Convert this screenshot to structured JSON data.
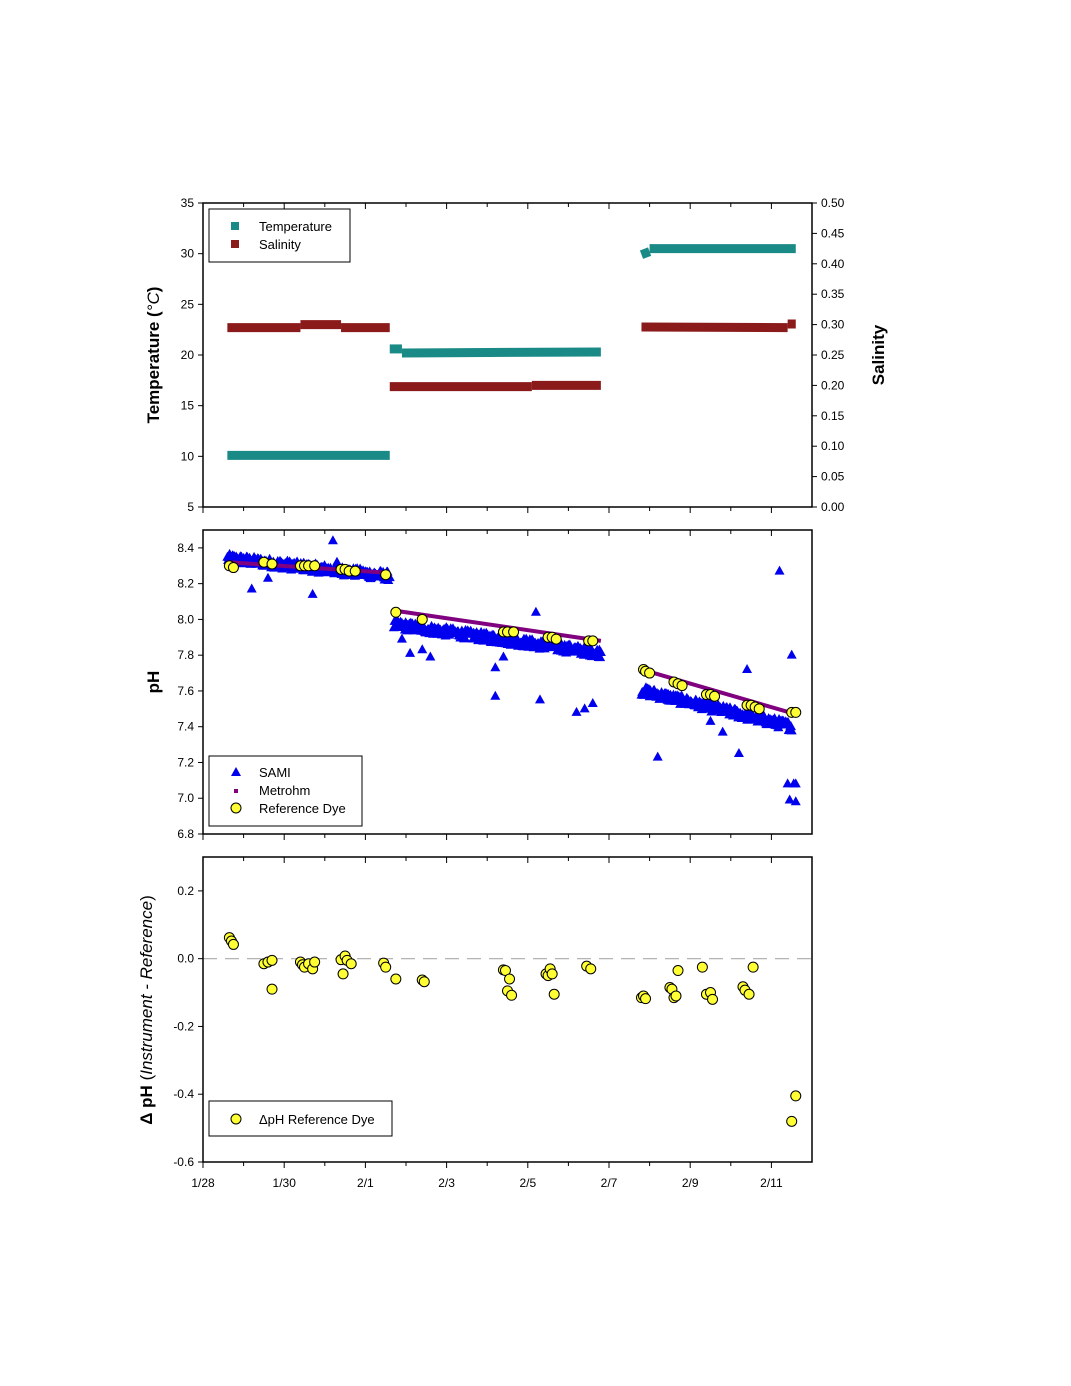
{
  "chart_data": [
    {
      "type": "scatter",
      "panel": "top",
      "y_label": "Temperature (°C)",
      "y_label_parts": [
        "Temperature (",
        "°C",
        ")"
      ],
      "y_ticks": [
        "5",
        "10",
        "15",
        "20",
        "25",
        "30",
        "35"
      ],
      "ylim": [
        5,
        35
      ],
      "y2_label": "Salinity",
      "y2_ticks": [
        "0.00",
        "0.05",
        "0.10",
        "0.15",
        "0.20",
        "0.25",
        "0.30",
        "0.35",
        "0.40",
        "0.45",
        "0.50"
      ],
      "y2lim": [
        0,
        0.5
      ],
      "xlim": [
        0,
        15
      ],
      "legend": [
        "Temperature",
        "Salinity"
      ],
      "legend_position": "top-left",
      "colors": {
        "temperature": "#1a8a87",
        "salinity": "#8b1a1a"
      },
      "series": [
        {
          "name": "Temperature",
          "axis": "left",
          "segments": [
            {
              "x": [
                0.6,
                4.6
              ],
              "y": [
                10.1,
                10.1
              ]
            },
            {
              "x": [
                4.6,
                4.9
              ],
              "y": [
                20.6,
                20.6
              ]
            },
            {
              "x": [
                4.9,
                9.8
              ],
              "y": [
                20.2,
                20.3
              ]
            },
            {
              "x": [
                10.8,
                11.0
              ],
              "y": [
                29.9,
                30.2
              ]
            },
            {
              "x": [
                11.0,
                14.6
              ],
              "y": [
                30.5,
                30.5
              ]
            }
          ]
        },
        {
          "name": "Salinity",
          "axis": "right",
          "segments": [
            {
              "x": [
                0.6,
                2.4
              ],
              "y": [
                0.295,
                0.295
              ]
            },
            {
              "x": [
                2.4,
                3.4
              ],
              "y": [
                0.3,
                0.3
              ]
            },
            {
              "x": [
                3.4,
                4.6
              ],
              "y": [
                0.295,
                0.295
              ]
            },
            {
              "x": [
                4.6,
                8.1
              ],
              "y": [
                0.198,
                0.198
              ]
            },
            {
              "x": [
                8.1,
                9.8
              ],
              "y": [
                0.2,
                0.2
              ]
            },
            {
              "x": [
                10.8,
                14.4
              ],
              "y": [
                0.296,
                0.295
              ]
            },
            {
              "x": [
                14.4,
                14.6
              ],
              "y": [
                0.301,
                0.301
              ]
            }
          ]
        }
      ]
    },
    {
      "type": "scatter",
      "panel": "middle",
      "y_label": "pH",
      "y_ticks": [
        "6.8",
        "7.0",
        "7.2",
        "7.4",
        "7.6",
        "7.8",
        "8.0",
        "8.2",
        "8.4"
      ],
      "ylim": [
        6.8,
        8.5
      ],
      "xlim": [
        0,
        15
      ],
      "legend": [
        "SAMI",
        "Metrohm",
        "Reference Dye"
      ],
      "legend_position": "bottom-left",
      "colors": {
        "sami": "#0000ee",
        "metrohm": "#800080",
        "ref": "#ffff33"
      },
      "sami_bands": [
        {
          "x0": 0.6,
          "x1": 4.6,
          "y0": 8.34,
          "y1": 8.24
        },
        {
          "x0": 4.7,
          "x1": 9.8,
          "y0": 7.97,
          "y1": 7.81
        },
        {
          "x0": 10.8,
          "x1": 14.5,
          "y0": 7.6,
          "y1": 7.4
        }
      ],
      "sami_outliers": [
        [
          1.2,
          8.17
        ],
        [
          1.6,
          8.23
        ],
        [
          2.7,
          8.14
        ],
        [
          3.2,
          8.44
        ],
        [
          3.3,
          8.32
        ],
        [
          4.9,
          7.89
        ],
        [
          5.1,
          7.81
        ],
        [
          5.4,
          7.83
        ],
        [
          5.6,
          7.79
        ],
        [
          7.2,
          7.57
        ],
        [
          7.2,
          7.73
        ],
        [
          7.4,
          7.79
        ],
        [
          8.2,
          8.04
        ],
        [
          8.3,
          7.55
        ],
        [
          9.2,
          7.48
        ],
        [
          9.4,
          7.5
        ],
        [
          9.6,
          7.53
        ],
        [
          11.2,
          7.23
        ],
        [
          12.5,
          7.43
        ],
        [
          12.8,
          7.37
        ],
        [
          13.2,
          7.25
        ],
        [
          13.4,
          7.72
        ],
        [
          14.2,
          8.27
        ],
        [
          14.5,
          7.8
        ],
        [
          14.4,
          7.08
        ],
        [
          14.55,
          7.08
        ],
        [
          14.6,
          7.08
        ],
        [
          14.45,
          6.99
        ],
        [
          14.6,
          6.98
        ]
      ],
      "metrohm_segments": [
        {
          "x": [
            0.6,
            4.6
          ],
          "y": [
            8.32,
            8.26
          ]
        },
        {
          "x": [
            4.7,
            9.8
          ],
          "y": [
            8.05,
            7.88
          ]
        },
        {
          "x": [
            10.8,
            14.6
          ],
          "y": [
            7.72,
            7.47
          ]
        }
      ],
      "ref_points": [
        [
          0.65,
          8.3
        ],
        [
          0.75,
          8.29
        ],
        [
          1.5,
          8.32
        ],
        [
          1.7,
          8.31
        ],
        [
          2.4,
          8.3
        ],
        [
          2.5,
          8.3
        ],
        [
          2.6,
          8.3
        ],
        [
          2.75,
          8.3
        ],
        [
          3.4,
          8.28
        ],
        [
          3.5,
          8.28
        ],
        [
          3.6,
          8.27
        ],
        [
          3.75,
          8.27
        ],
        [
          4.5,
          8.25
        ],
        [
          4.75,
          8.04
        ],
        [
          5.4,
          8.0
        ],
        [
          7.4,
          7.93
        ],
        [
          7.5,
          7.93
        ],
        [
          7.65,
          7.93
        ],
        [
          8.5,
          7.9
        ],
        [
          8.6,
          7.9
        ],
        [
          8.7,
          7.89
        ],
        [
          9.5,
          7.88
        ],
        [
          9.6,
          7.88
        ],
        [
          10.85,
          7.72
        ],
        [
          10.9,
          7.71
        ],
        [
          11.0,
          7.7
        ],
        [
          11.6,
          7.65
        ],
        [
          11.7,
          7.64
        ],
        [
          11.8,
          7.63
        ],
        [
          12.4,
          7.58
        ],
        [
          12.5,
          7.58
        ],
        [
          12.6,
          7.57
        ],
        [
          13.4,
          7.52
        ],
        [
          13.5,
          7.52
        ],
        [
          13.6,
          7.51
        ],
        [
          13.7,
          7.5
        ],
        [
          14.5,
          7.48
        ],
        [
          14.6,
          7.48
        ]
      ]
    },
    {
      "type": "scatter",
      "panel": "bottom",
      "y_label": "Δ pH (Instrument - Reference)",
      "y_label_parts": [
        "Δ pH",
        " (",
        "Instrument - Reference",
        ")"
      ],
      "y_ticks": [
        "-0.6",
        "-0.4",
        "-0.2",
        "0.0",
        "0.2"
      ],
      "ylim": [
        -0.6,
        0.3
      ],
      "x_ticks": [
        "1/28",
        "1/30",
        "2/1",
        "2/3",
        "2/5",
        "2/7",
        "2/9",
        "2/11"
      ],
      "xlim": [
        0,
        15
      ],
      "reference_line": 0,
      "legend": [
        "ΔpH Reference Dye"
      ],
      "legend_position": "bottom-left",
      "colors": {
        "ref": "#ffff33",
        "zero_line": "#aaaaaa"
      },
      "points": [
        [
          0.65,
          0.062
        ],
        [
          0.7,
          0.052
        ],
        [
          0.75,
          0.042
        ],
        [
          1.5,
          -0.015
        ],
        [
          1.6,
          -0.01
        ],
        [
          1.7,
          -0.005
        ],
        [
          1.7,
          -0.09
        ],
        [
          2.4,
          -0.01
        ],
        [
          2.45,
          -0.018
        ],
        [
          2.5,
          -0.025
        ],
        [
          2.6,
          -0.015
        ],
        [
          2.7,
          -0.03
        ],
        [
          2.75,
          -0.01
        ],
        [
          3.4,
          -0.003
        ],
        [
          3.45,
          -0.045
        ],
        [
          3.5,
          0.008
        ],
        [
          3.55,
          -0.005
        ],
        [
          3.65,
          -0.015
        ],
        [
          4.45,
          -0.013
        ],
        [
          4.5,
          -0.025
        ],
        [
          4.75,
          -0.06
        ],
        [
          5.4,
          -0.063
        ],
        [
          5.45,
          -0.068
        ],
        [
          7.4,
          -0.033
        ],
        [
          7.45,
          -0.035
        ],
        [
          7.5,
          -0.095
        ],
        [
          7.55,
          -0.06
        ],
        [
          7.6,
          -0.108
        ],
        [
          8.45,
          -0.045
        ],
        [
          8.5,
          -0.05
        ],
        [
          8.55,
          -0.03
        ],
        [
          8.6,
          -0.045
        ],
        [
          8.65,
          -0.105
        ],
        [
          9.45,
          -0.022
        ],
        [
          9.55,
          -0.03
        ],
        [
          10.8,
          -0.115
        ],
        [
          10.85,
          -0.11
        ],
        [
          10.9,
          -0.118
        ],
        [
          11.5,
          -0.085
        ],
        [
          11.55,
          -0.09
        ],
        [
          11.6,
          -0.115
        ],
        [
          11.65,
          -0.11
        ],
        [
          11.7,
          -0.035
        ],
        [
          12.3,
          -0.025
        ],
        [
          12.4,
          -0.105
        ],
        [
          12.5,
          -0.1
        ],
        [
          12.55,
          -0.12
        ],
        [
          13.3,
          -0.083
        ],
        [
          13.35,
          -0.093
        ],
        [
          13.45,
          -0.105
        ],
        [
          13.55,
          -0.025
        ],
        [
          14.5,
          -0.48
        ],
        [
          14.6,
          -0.405
        ]
      ]
    }
  ]
}
